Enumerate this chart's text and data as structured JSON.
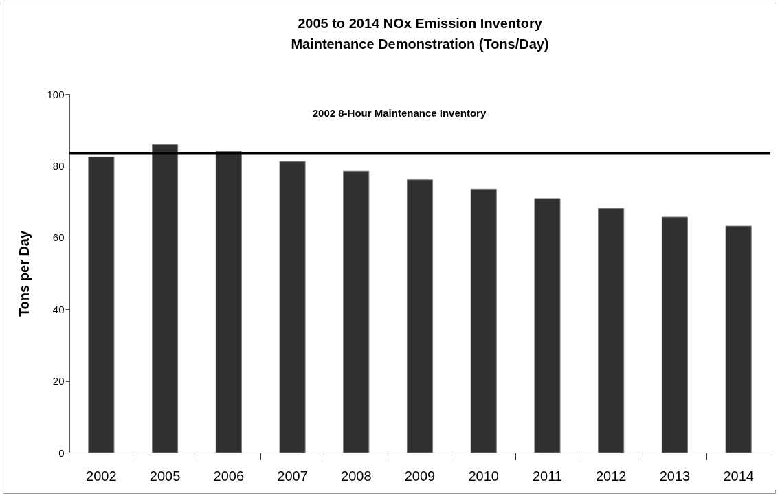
{
  "chart_data": {
    "type": "bar",
    "title": "2005 to 2014 NOx Emission Inventory\nMaintenance Demonstration (Tons/Day)",
    "ylabel": "Tons per Day",
    "categories": [
      "2002",
      "2005",
      "2006",
      "2007",
      "2008",
      "2009",
      "2010",
      "2011",
      "2012",
      "2013",
      "2014"
    ],
    "values": [
      82.5,
      85.9,
      84.0,
      81.2,
      78.5,
      76.1,
      73.5,
      70.9,
      68.1,
      65.7,
      63.2
    ],
    "color": "#303030",
    "ylim": [
      0,
      100
    ],
    "yticks": [
      0,
      20,
      40,
      60,
      80,
      100
    ],
    "grid": false,
    "ref_lines": [
      {
        "axis": "y",
        "value": 83.5,
        "label": "2002 8-Hour Maintenance Inventory",
        "color": "#000000"
      }
    ]
  }
}
